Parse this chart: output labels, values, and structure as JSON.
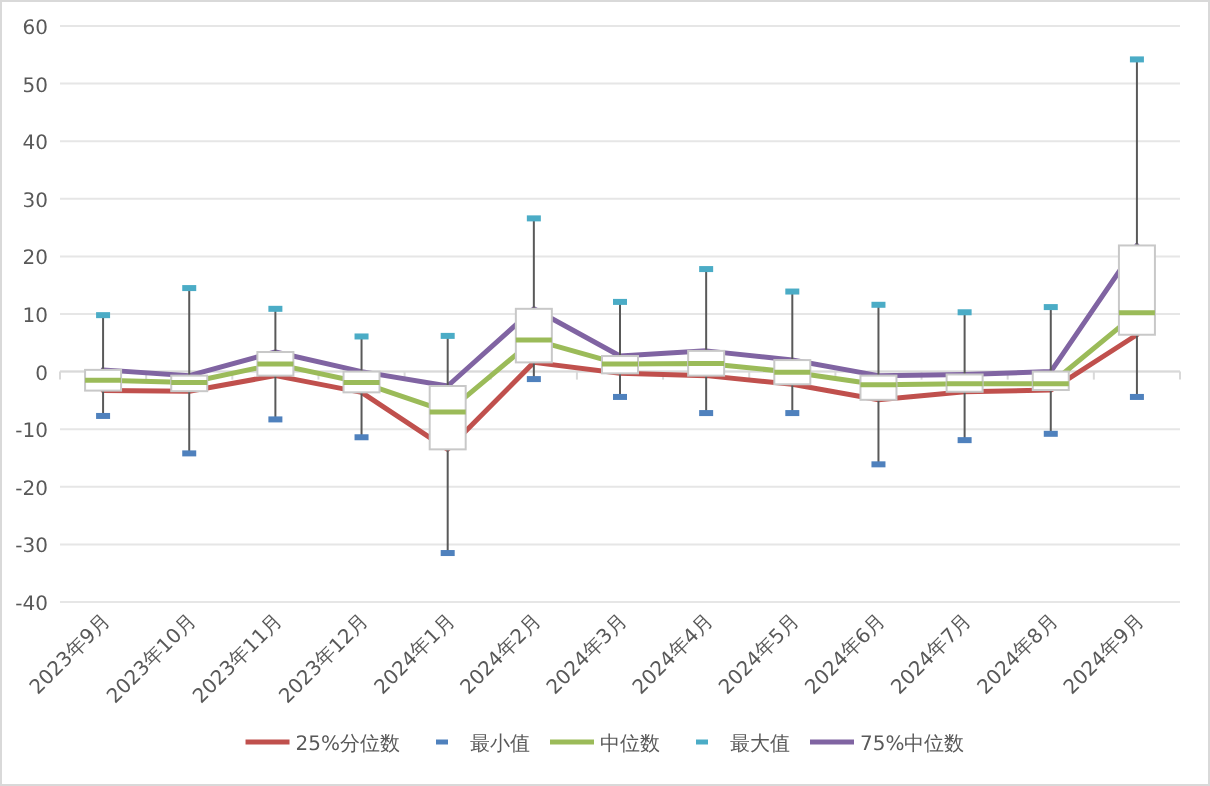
{
  "chart_data": {
    "type": "box",
    "categories": [
      "2023年9月",
      "2023年10月",
      "2023年11月",
      "2023年12月",
      "2024年1月",
      "2024年2月",
      "2024年3月",
      "2024年4月",
      "2024年5月",
      "2024年6月",
      "2024年7月",
      "2024年8月",
      "2024年9月"
    ],
    "boxes": [
      {
        "low": -7.7,
        "q1": -3.3,
        "median": -1.5,
        "q3": 0.3,
        "high": 9.8
      },
      {
        "low": -14.2,
        "q1": -3.4,
        "median": -1.9,
        "q3": -0.7,
        "high": 14.5
      },
      {
        "low": -8.3,
        "q1": -0.7,
        "median": 1.3,
        "q3": 3.4,
        "high": 10.9
      },
      {
        "low": -11.4,
        "q1": -3.6,
        "median": -1.9,
        "q3": 0,
        "high": 6.1
      },
      {
        "low": -31.5,
        "q1": -13.5,
        "median": -7,
        "q3": -2.5,
        "high": 6.2
      },
      {
        "low": -1.3,
        "q1": 1.6,
        "median": 5.5,
        "q3": 10.9,
        "high": 26.6
      },
      {
        "low": -4.4,
        "q1": -0.3,
        "median": 1.3,
        "q3": 2.7,
        "high": 12.1
      },
      {
        "low": -7.2,
        "q1": -0.7,
        "median": 1.4,
        "q3": 3.6,
        "high": 17.8
      },
      {
        "low": -7.2,
        "q1": -2.2,
        "median": -0.1,
        "q3": 2,
        "high": 13.9
      },
      {
        "low": -16.1,
        "q1": -4.9,
        "median": -2.3,
        "q3": -0.7,
        "high": 11.6
      },
      {
        "low": -11.9,
        "q1": -3.5,
        "median": -2.1,
        "q3": -0.5,
        "high": 10.3
      },
      {
        "low": -10.8,
        "q1": -3.2,
        "median": -2.1,
        "q3": 0,
        "high": 11.2
      },
      {
        "low": -4.4,
        "q1": 6.4,
        "median": 10.2,
        "q3": 21.9,
        "high": 54.2
      }
    ],
    "series": [
      {
        "name": "25%分位数",
        "type": "line",
        "color": "#c0504d",
        "values": [
          -3.3,
          -3.4,
          -0.7,
          -3.6,
          -13.5,
          1.6,
          -0.3,
          -0.7,
          -2.2,
          -4.9,
          -3.5,
          -3.2,
          6.4
        ]
      },
      {
        "name": "最小值",
        "type": "scatter",
        "color": "#4f81bd",
        "values": [
          -7.7,
          -14.2,
          -8.3,
          -11.4,
          -31.5,
          -1.3,
          -4.4,
          -7.2,
          -7.2,
          -16.1,
          -11.9,
          -10.8,
          -4.4
        ]
      },
      {
        "name": "中位数",
        "type": "line",
        "color": "#9bbb59",
        "values": [
          -1.5,
          -1.9,
          1.3,
          -1.9,
          -7,
          5.5,
          1.3,
          1.4,
          -0.1,
          -2.3,
          -2.1,
          -2.1,
          10.2
        ]
      },
      {
        "name": "最大值",
        "type": "scatter",
        "color": "#4bacc6",
        "values": [
          9.8,
          14.5,
          10.9,
          6.1,
          6.2,
          26.6,
          12.1,
          17.8,
          13.9,
          11.6,
          10.3,
          11.2,
          54.2
        ]
      },
      {
        "name": "75%中位数",
        "type": "line",
        "color": "#8064a2",
        "values": [
          0.3,
          -0.7,
          3.4,
          0,
          -2.5,
          10.9,
          2.7,
          3.6,
          2,
          -0.7,
          -0.5,
          0,
          21.9
        ]
      }
    ],
    "ylim": [
      -40,
      60
    ],
    "yticks": [
      -40,
      -30,
      -20,
      -10,
      0,
      10,
      20,
      30,
      40,
      50,
      60
    ],
    "grid": "y",
    "legend": "bottom"
  }
}
